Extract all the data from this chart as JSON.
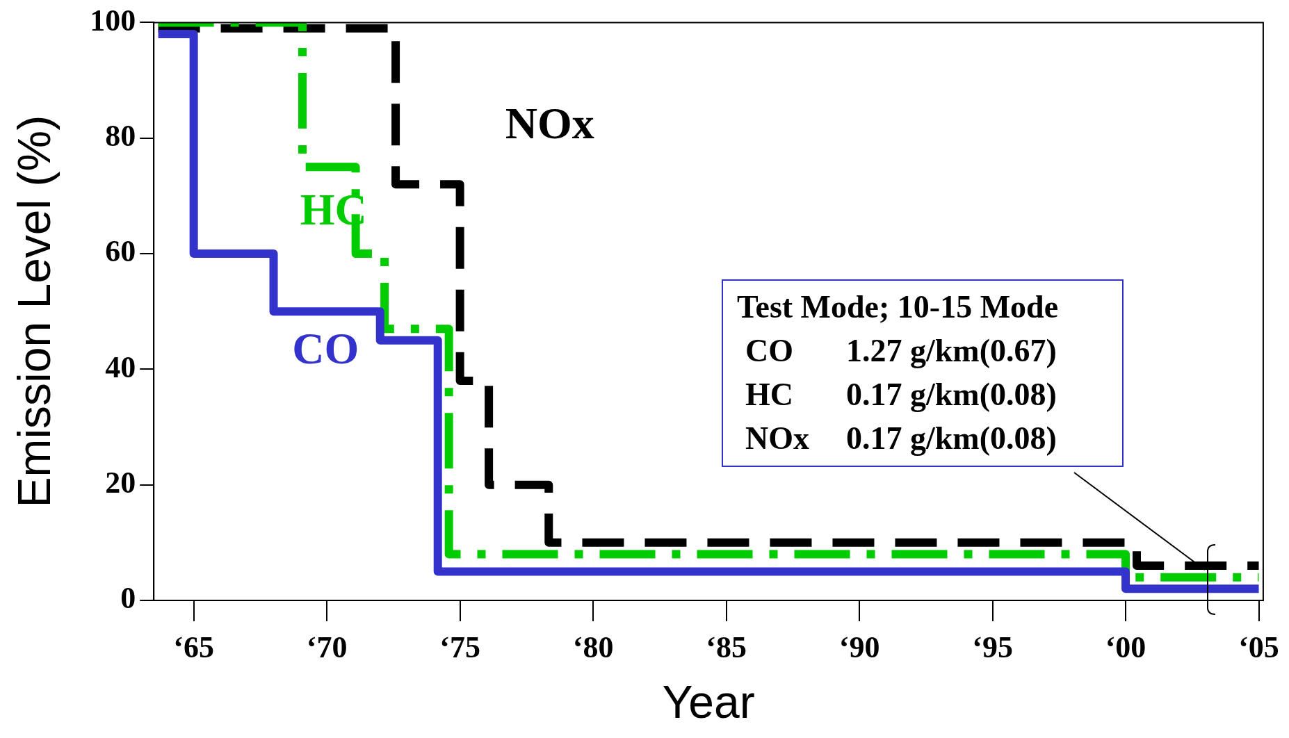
{
  "chart_data": {
    "type": "step",
    "xlabel": "Year",
    "ylabel": "Emission Level (%)",
    "xlim": [
      "1963-07",
      "2005-03"
    ],
    "ylim": [
      0,
      100
    ],
    "xticks": [
      {
        "value": "1965",
        "label": "‘65"
      },
      {
        "value": "1970",
        "label": "‘70"
      },
      {
        "value": "1975",
        "label": "‘75"
      },
      {
        "value": "1980",
        "label": "‘80"
      },
      {
        "value": "1985",
        "label": "‘85"
      },
      {
        "value": "1990",
        "label": "‘90"
      },
      {
        "value": "1995",
        "label": "‘95"
      },
      {
        "value": "2000",
        "label": "‘00"
      },
      {
        "value": "2005",
        "label": "‘05"
      }
    ],
    "yticks": [
      0,
      20,
      40,
      60,
      80,
      100
    ],
    "grid": false,
    "legend": false,
    "marker": "none",
    "series": [
      {
        "name": "CO",
        "color": "#3333cc",
        "line_style": "solid",
        "x": [
          "1963-09",
          "1965",
          "1968",
          "1972",
          "1974-03",
          "2000",
          "2005"
        ],
        "values": [
          98,
          60,
          50,
          45,
          5,
          2,
          2
        ]
      },
      {
        "name": "HC",
        "color": "#00cc00",
        "line_style": "dashdot",
        "x": [
          "1963-09",
          "1969-02",
          "1971-02",
          "1972-03",
          "1974-08",
          "2000",
          "2005"
        ],
        "values": [
          100,
          75,
          60,
          47,
          8,
          4,
          4
        ]
      },
      {
        "name": "NOx",
        "color": "#000000",
        "line_style": "dashed",
        "x": [
          "1963-09",
          "1972-08",
          "1975",
          "1976-02",
          "1978-05",
          "2000-06",
          "2005"
        ],
        "values": [
          99,
          72,
          38,
          20,
          10,
          6,
          6
        ]
      }
    ],
    "annotations": [
      "Test Mode; 10-15 Mode",
      "CO 1.27 g/km(0.67)",
      "HC 0.17 g/km(0.08)",
      "NOx 0.17 g/km(0.08)"
    ]
  }
}
